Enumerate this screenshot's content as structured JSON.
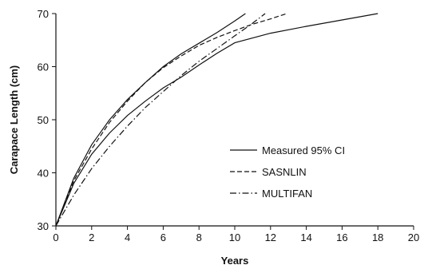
{
  "chart_data": {
    "type": "line",
    "xlabel": "Years",
    "ylabel": "Carapace Length (cm)",
    "xlim": [
      0,
      20
    ],
    "ylim": [
      30,
      70
    ],
    "xticks": [
      0,
      2,
      4,
      6,
      8,
      10,
      12,
      14,
      16,
      18,
      20
    ],
    "yticks": [
      30,
      40,
      50,
      60,
      70
    ],
    "grid": false,
    "legend_position": "center-right",
    "series": [
      {
        "name": "Measured 95% CI",
        "style": "solid",
        "x": [
          0,
          1,
          2,
          3,
          4,
          5,
          6,
          7,
          8,
          9,
          10,
          12,
          14,
          16,
          18
        ],
        "y": [
          30,
          38,
          43.5,
          47.5,
          50.8,
          53.5,
          56,
          58,
          60.3,
          62.5,
          64.5,
          66.3,
          67.6,
          68.8,
          70
        ]
      },
      {
        "name": "",
        "style": "solid",
        "x": [
          0,
          1,
          2,
          3,
          4,
          5,
          6,
          7,
          8,
          9,
          10,
          10.6
        ],
        "y": [
          30,
          39,
          45.3,
          50,
          53.8,
          57,
          60,
          62.4,
          64.4,
          66.4,
          68.6,
          70
        ]
      },
      {
        "name": "SASNLIN",
        "style": "dashed",
        "x": [
          0,
          1,
          2,
          3,
          4,
          5,
          6,
          7,
          8,
          9,
          10,
          11,
          12,
          12.9
        ],
        "y": [
          30,
          38.5,
          44.5,
          49.5,
          53.5,
          57,
          59.8,
          62,
          64,
          65.5,
          66.8,
          68,
          69,
          70
        ]
      },
      {
        "name": "MULTIFAN",
        "style": "dashdot",
        "x": [
          0,
          1,
          2,
          3,
          4,
          5,
          6,
          7,
          8,
          9,
          10,
          11,
          11.7
        ],
        "y": [
          30,
          35.8,
          40.8,
          45,
          48.8,
          52.3,
          55.3,
          58.3,
          61,
          63.4,
          65.8,
          68.2,
          70
        ]
      }
    ]
  }
}
